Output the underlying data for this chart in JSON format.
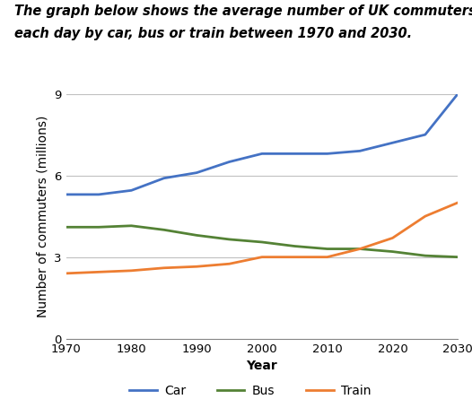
{
  "title_line1": "The graph below shows the average number of UK commuters travelling",
  "title_line2": "each day by car, bus or train between 1970 and 2030.",
  "xlabel": "Year",
  "ylabel": "Number of commuters (millions)",
  "years": [
    1970,
    1975,
    1980,
    1985,
    1990,
    1995,
    2000,
    2005,
    2010,
    2015,
    2020,
    2025,
    2030
  ],
  "car": [
    5.3,
    5.3,
    5.45,
    5.9,
    6.1,
    6.5,
    6.8,
    6.8,
    6.8,
    6.9,
    7.2,
    7.5,
    9.0
  ],
  "bus": [
    4.1,
    4.1,
    4.15,
    4.0,
    3.8,
    3.65,
    3.55,
    3.4,
    3.3,
    3.3,
    3.2,
    3.05,
    3.0
  ],
  "train": [
    2.4,
    2.45,
    2.5,
    2.6,
    2.65,
    2.75,
    3.0,
    3.0,
    3.0,
    3.3,
    3.7,
    4.5,
    5.0
  ],
  "car_color": "#4472c4",
  "bus_color": "#548235",
  "train_color": "#ed7d31",
  "ylim": [
    0,
    9
  ],
  "yticks": [
    0,
    3,
    6,
    9
  ],
  "xlim": [
    1970,
    2030
  ],
  "xticks": [
    1970,
    1980,
    1990,
    2000,
    2010,
    2020,
    2030
  ],
  "grid_color": "#c0c0c0",
  "legend_labels": [
    "Car",
    "Bus",
    "Train"
  ],
  "title_fontsize": 10.5,
  "axis_label_fontsize": 10,
  "tick_fontsize": 9.5,
  "legend_fontsize": 10,
  "line_width": 2.0
}
